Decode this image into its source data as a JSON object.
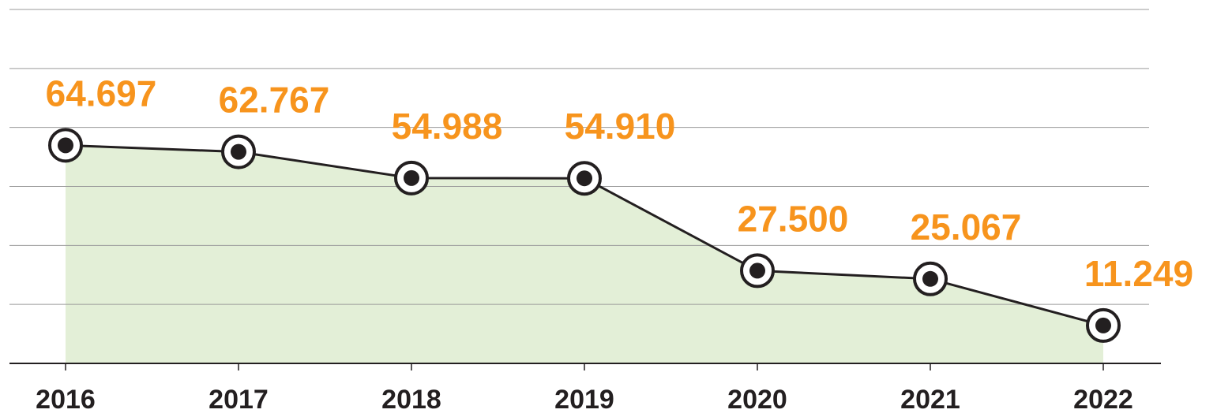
{
  "chart_data": {
    "type": "line",
    "categories": [
      "2016",
      "2017",
      "2018",
      "2019",
      "2020",
      "2021",
      "2022"
    ],
    "values": [
      64697,
      62767,
      54988,
      54910,
      27500,
      25067,
      11249
    ],
    "value_labels": [
      "64.697",
      "62.767",
      "54.988",
      "54.910",
      "27.500",
      "25.067",
      "11.249"
    ],
    "color": "#231f20",
    "area_color": "#e3efd7",
    "ylim": [
      0,
      105000
    ],
    "yticks": [
      0,
      17500,
      35000,
      52500,
      70000,
      87500,
      105000
    ],
    "grid": true
  }
}
